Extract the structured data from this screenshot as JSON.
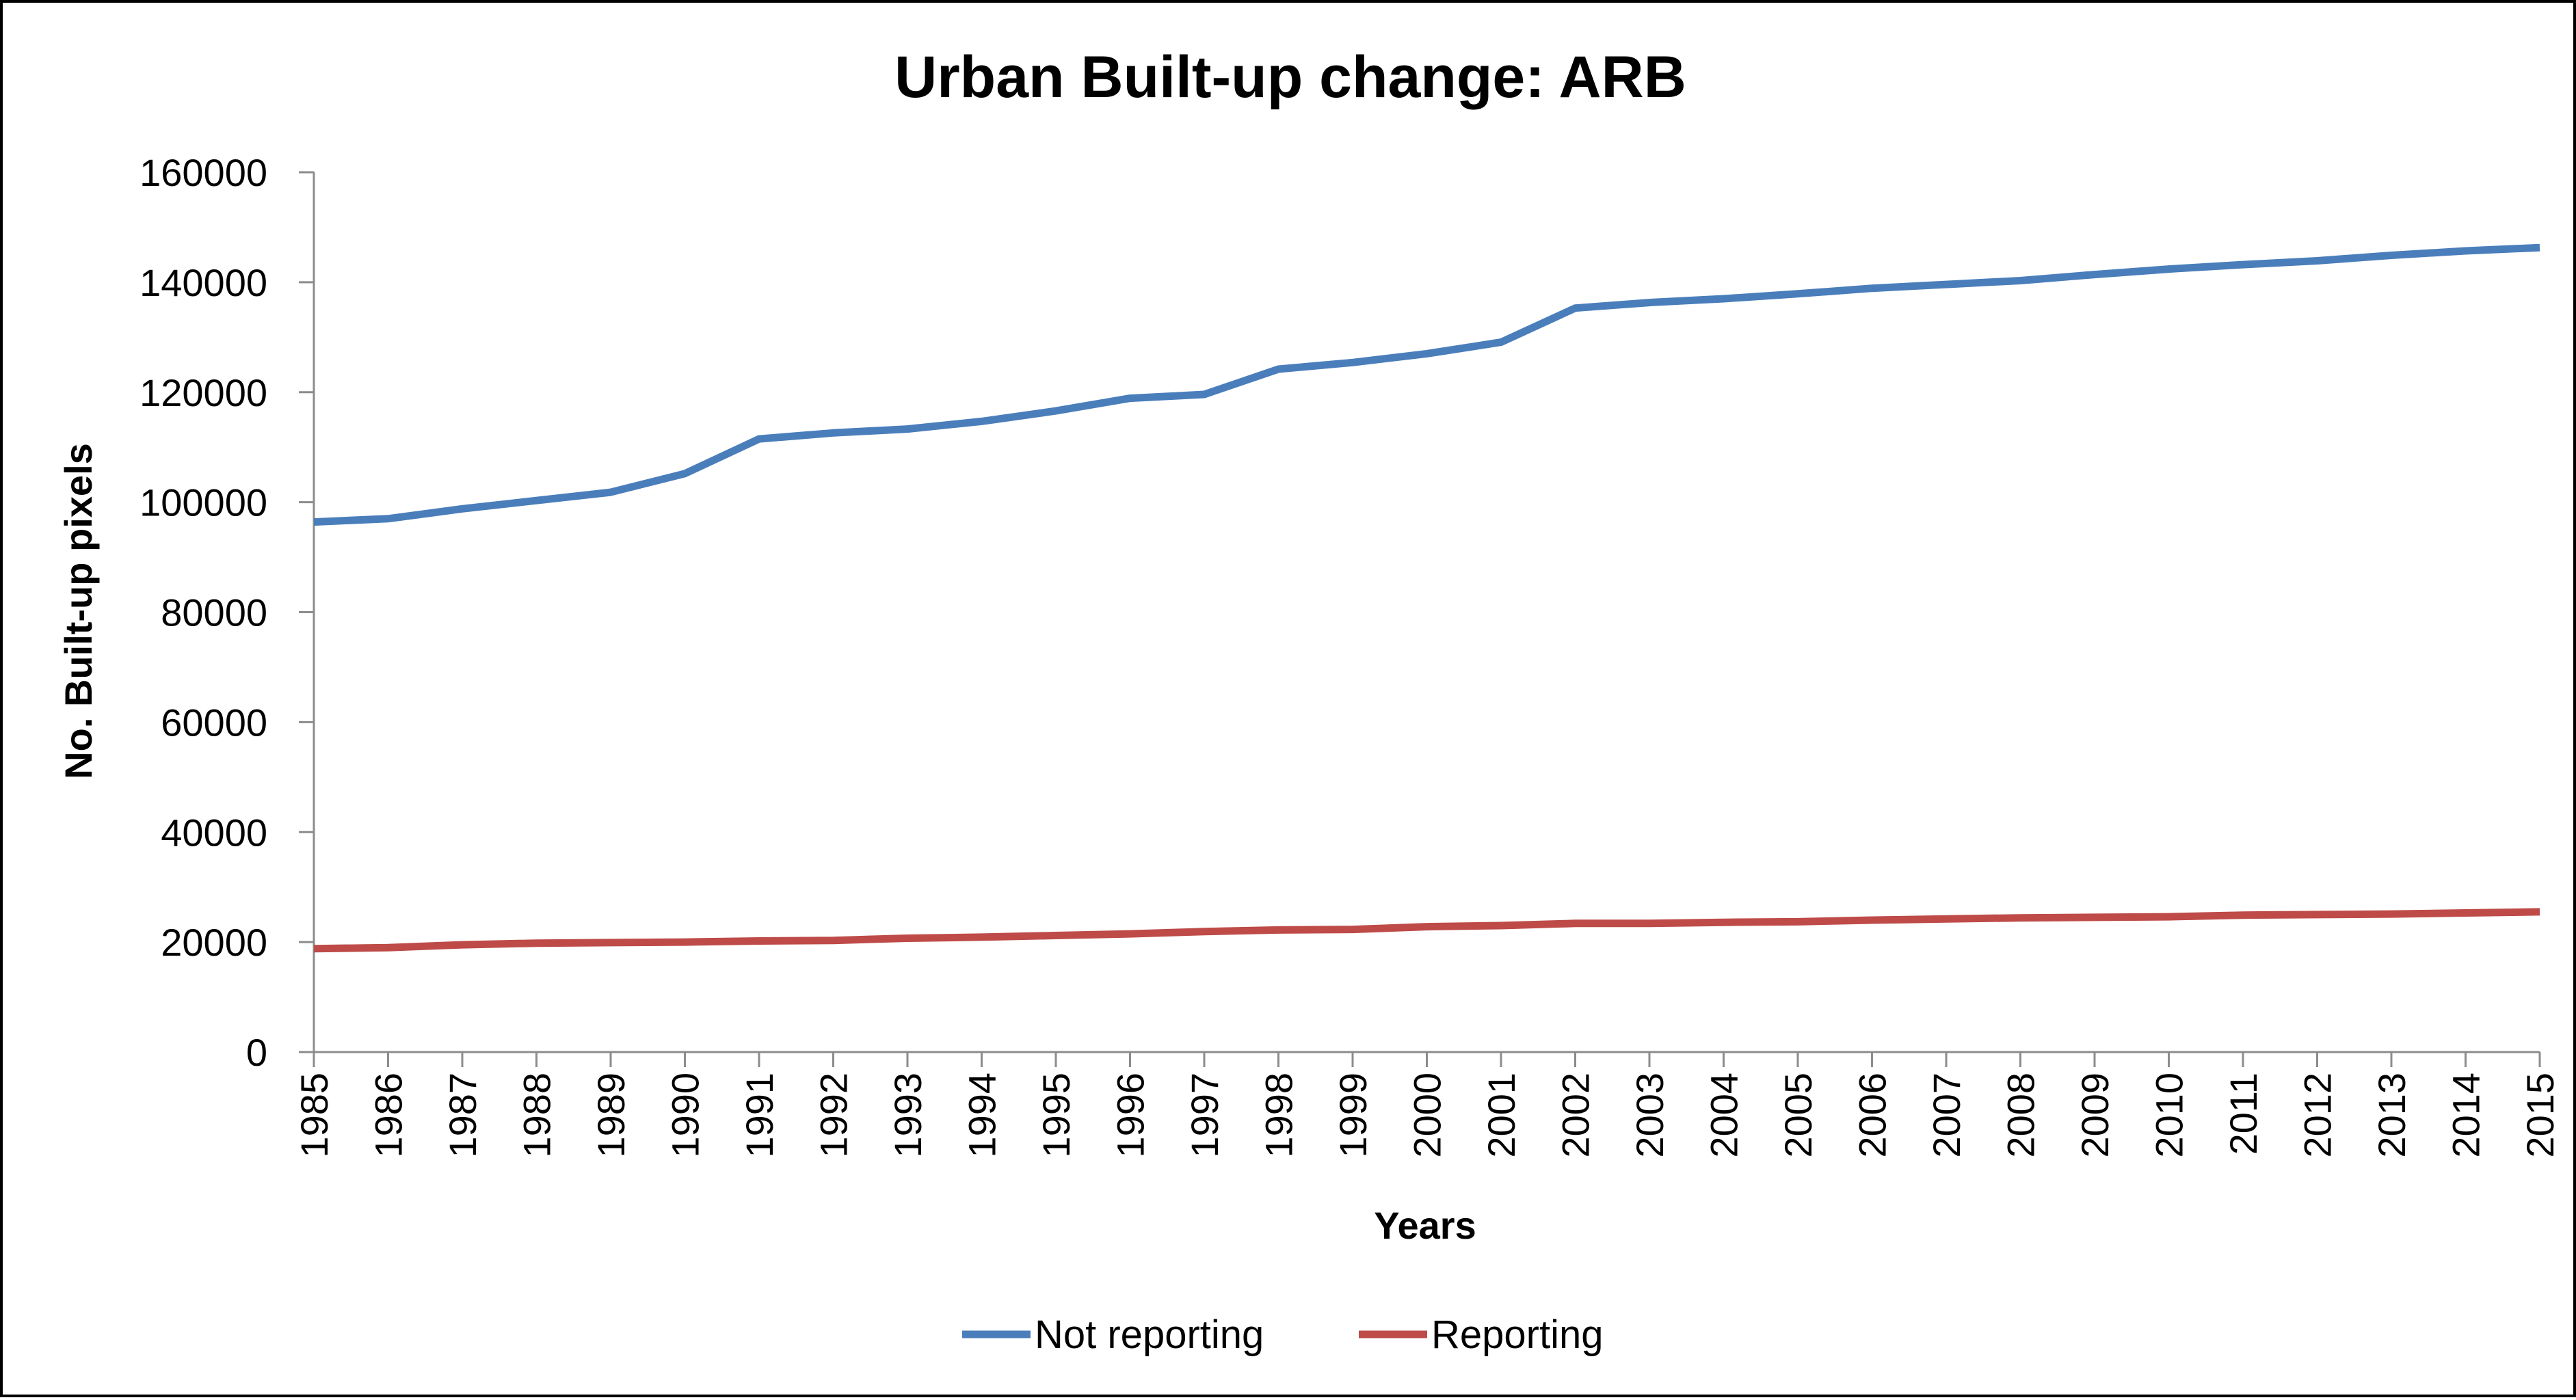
{
  "chart_data": {
    "type": "line",
    "title": "Urban Built-up change: ARB",
    "xlabel": "Years",
    "ylabel": "No. Built-up pixels",
    "ylim": [
      0,
      160000
    ],
    "yticks": [
      "0",
      "20000",
      "40000",
      "60000",
      "80000",
      "100000",
      "120000",
      "140000",
      "160000"
    ],
    "categories": [
      "1985",
      "1986",
      "1987",
      "1988",
      "1989",
      "1990",
      "1991",
      "1992",
      "1993",
      "1994",
      "1995",
      "1996",
      "1997",
      "1998",
      "1999",
      "2000",
      "2001",
      "2002",
      "2003",
      "2004",
      "2005",
      "2006",
      "2007",
      "2008",
      "2009",
      "2010",
      "2011",
      "2012",
      "2013",
      "2014",
      "2015"
    ],
    "series": [
      {
        "name": "Not reporting",
        "color": "#4a7ebb",
        "values": [
          96400,
          97000,
          98800,
          100300,
          101800,
          105200,
          111500,
          112600,
          113300,
          114700,
          116600,
          118900,
          119600,
          124200,
          125400,
          127000,
          129100,
          135300,
          136300,
          137000,
          137900,
          138900,
          139600,
          140300,
          141400,
          142400,
          143200,
          143900,
          144900,
          145700,
          146300
        ]
      },
      {
        "name": "Reporting",
        "color": "#be4b48",
        "values": [
          18800,
          19000,
          19500,
          19800,
          19900,
          20000,
          20200,
          20300,
          20700,
          20900,
          21200,
          21500,
          21900,
          22200,
          22300,
          22800,
          23000,
          23400,
          23400,
          23600,
          23700,
          24000,
          24200,
          24400,
          24500,
          24600,
          24900,
          25000,
          25100,
          25300,
          25500
        ]
      }
    ],
    "grid": false,
    "legend_position": "bottom"
  }
}
